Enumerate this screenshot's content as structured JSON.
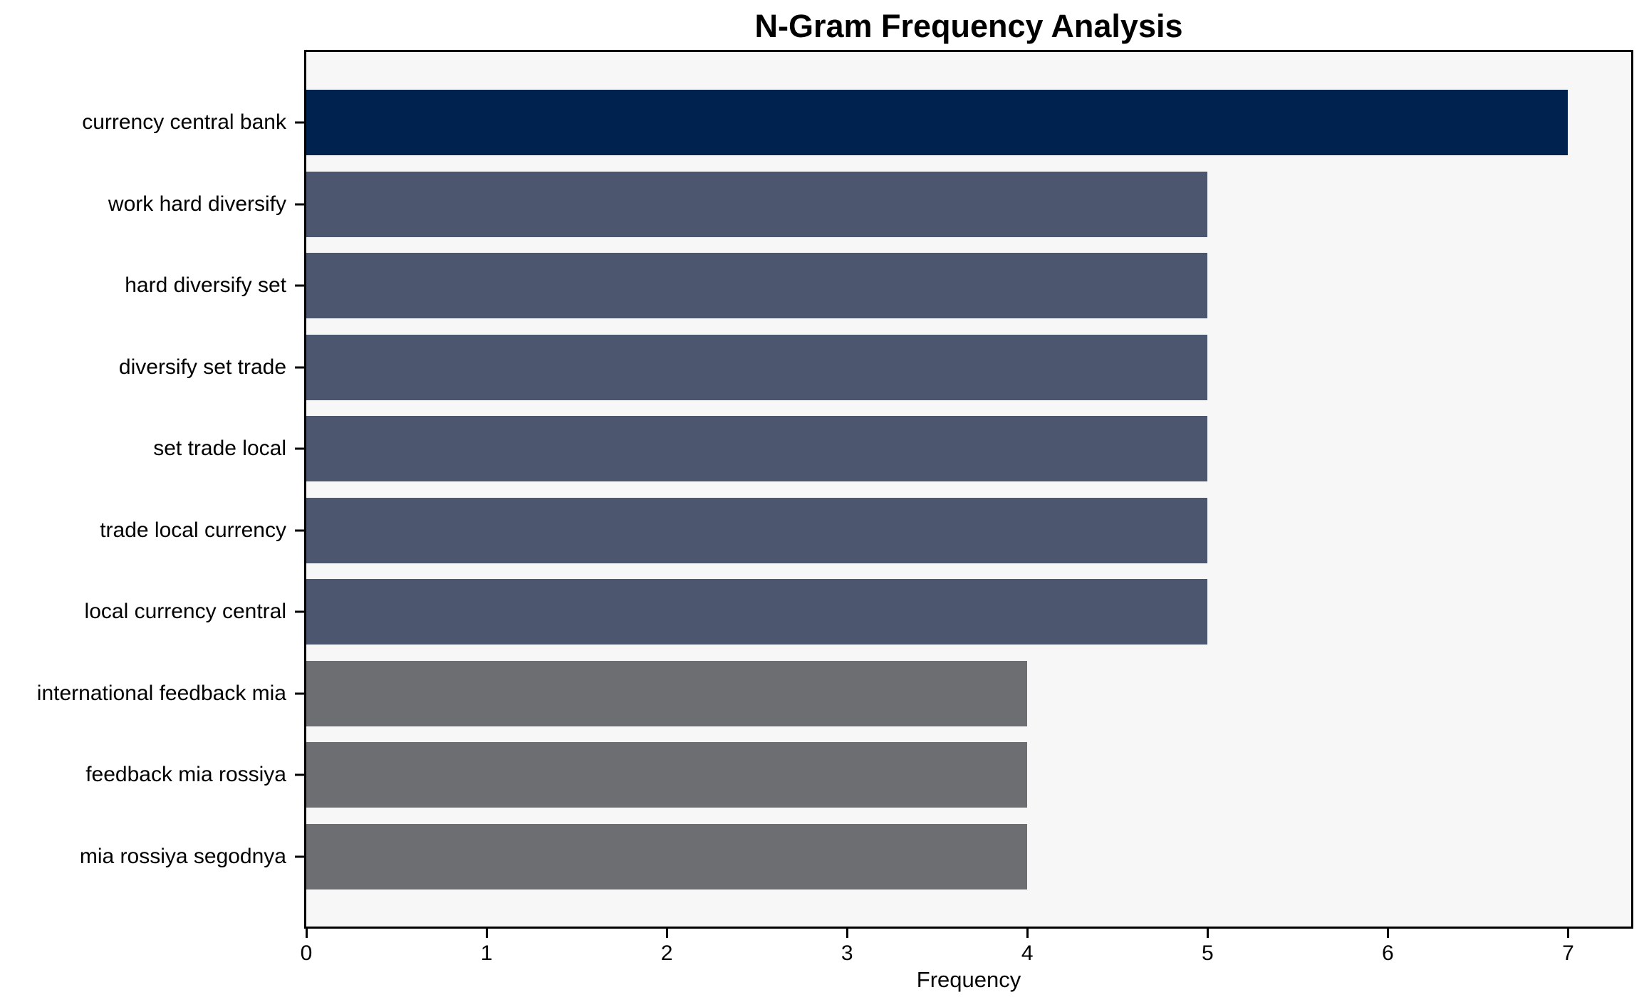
{
  "chart_data": {
    "type": "bar",
    "orientation": "horizontal",
    "title": "N-Gram Frequency Analysis",
    "xlabel": "Frequency",
    "ylabel": "",
    "categories": [
      "currency central bank",
      "work hard diversify",
      "hard diversify set",
      "diversify set trade",
      "set trade local",
      "trade local currency",
      "local currency central",
      "international feedback mia",
      "feedback mia rossiya",
      "mia rossiya segodnya"
    ],
    "values": [
      7,
      5,
      5,
      5,
      5,
      5,
      5,
      4,
      4,
      4
    ],
    "bar_colors": [
      "#00224e",
      "#4d566f",
      "#4d566f",
      "#4d566f",
      "#4d566f",
      "#4d566f",
      "#4d566f",
      "#6c6e72",
      "#6c6e72",
      "#6c6e72"
    ],
    "xticks": [
      0,
      1,
      2,
      3,
      4,
      5,
      6,
      7
    ],
    "xlim": [
      0,
      7.35
    ],
    "grid": false,
    "legend": false,
    "plot_background": "#f7f7f7",
    "figure_background": "#ffffff",
    "axis_color": "#000000",
    "text_color": "#000000"
  }
}
